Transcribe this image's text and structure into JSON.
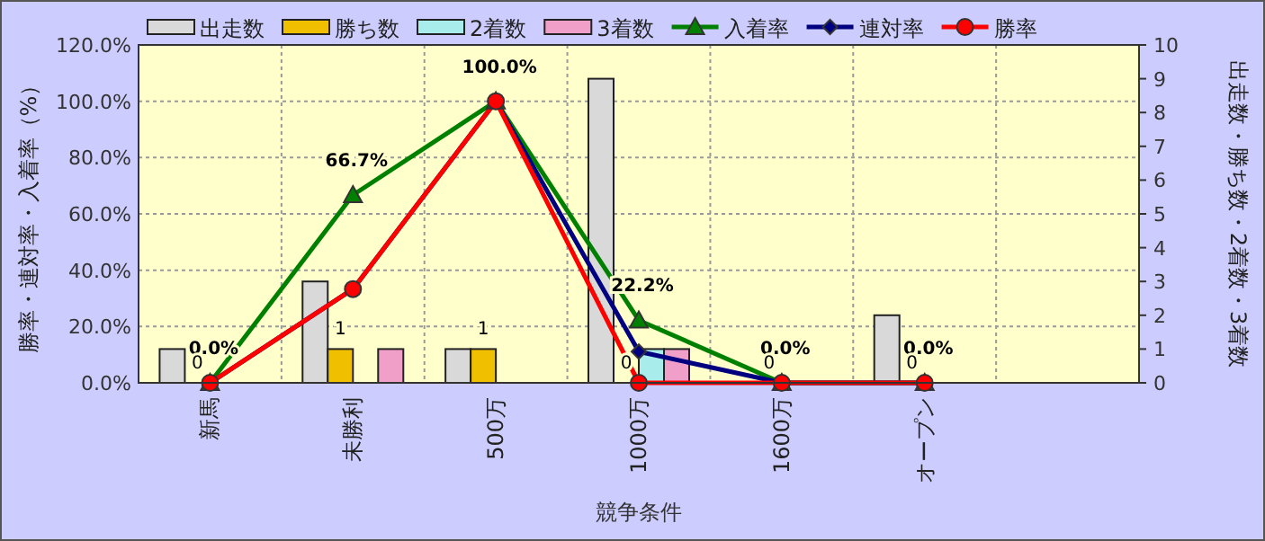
{
  "chart_data": {
    "type": "bar",
    "xlabel": "競争条件",
    "ylabel": "勝率・連対率・入着率（%）",
    "y2label": "出走数・勝ち数・2着数・3着数",
    "categories": [
      "新馬",
      "未勝利",
      "500万",
      "1000万",
      "1600万",
      "オープン",
      null
    ],
    "series": [
      {
        "name": "出走数",
        "axis": "y2",
        "color": "#d9d9d9",
        "values": [
          1,
          3,
          1,
          9,
          0,
          2,
          null
        ]
      },
      {
        "name": "勝ち数",
        "axis": "y2",
        "color": "#f0c000",
        "values": [
          0,
          1,
          1,
          0,
          0,
          0,
          null
        ],
        "value_labels": [
          "0",
          "1",
          "1",
          "0",
          "0",
          "0",
          null
        ]
      },
      {
        "name": "2着数",
        "axis": "y2",
        "color": "#a8ecec",
        "values": [
          0,
          0,
          0,
          1,
          0,
          0,
          null
        ]
      },
      {
        "name": "3着数",
        "axis": "y2",
        "color": "#f0a0c8",
        "values": [
          0,
          1,
          0,
          1,
          0,
          0,
          null
        ]
      },
      {
        "name": "入着率",
        "type": "line",
        "axis": "y",
        "color": "#008000",
        "marker": "triangle",
        "values": [
          0,
          66.7,
          100,
          22.2,
          0,
          0,
          null
        ],
        "value_labels": [
          "0.0%",
          "66.7%",
          "100.0%",
          "22.2%",
          "0.0%",
          "0.0%",
          null
        ]
      },
      {
        "name": "連対率",
        "type": "line",
        "axis": "y",
        "color": "#000080",
        "marker": "diamond",
        "values": [
          0,
          33.3,
          100,
          11.1,
          0,
          0,
          null
        ]
      },
      {
        "name": "勝率",
        "type": "line",
        "axis": "y",
        "color": "#ff0000",
        "marker": "circle",
        "values": [
          0,
          33.3,
          100,
          0,
          0,
          0,
          null
        ]
      }
    ],
    "ylim": [
      0,
      120
    ],
    "yticks": [
      {
        "value": 0,
        "label": "0.0%"
      },
      {
        "value": 20,
        "label": "20.0%"
      },
      {
        "value": 40,
        "label": "40.0%"
      },
      {
        "value": 60,
        "label": "60.0%"
      },
      {
        "value": 80,
        "label": "80.0%"
      },
      {
        "value": 100,
        "label": "100.0%"
      },
      {
        "value": 120,
        "label": "120.0%"
      }
    ],
    "y2lim": [
      0,
      10
    ],
    "y2ticks": [
      0,
      1,
      2,
      3,
      4,
      5,
      6,
      7,
      8,
      9,
      10
    ],
    "grid": true,
    "legend": "top"
  }
}
